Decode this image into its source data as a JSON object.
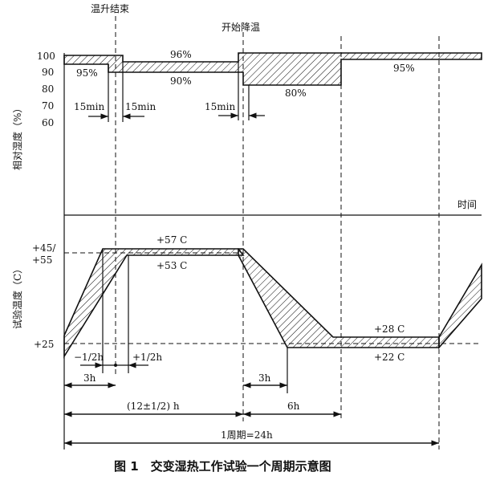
{
  "labels": {
    "heat_end": "温升结束",
    "cool_start": "开始降温",
    "humidity_axis": "相对湿度（%）",
    "temp_axis": "试验温度（C）",
    "time": "时间",
    "caption": "图 1　交变湿热工作试验一个周期示意图"
  },
  "humidity_ticks": [
    "100",
    "90",
    "80",
    "70",
    "60"
  ],
  "humidity_values": {
    "h95a": "95%",
    "h96": "96%",
    "h90": "90%",
    "h80": "80%",
    "h95b": "95%"
  },
  "durations": {
    "m1": "15min",
    "m2": "15min",
    "m3": "15min"
  },
  "temp_ticks": {
    "t45": "+45/",
    "t55": "+55",
    "t25": "+25"
  },
  "temp_values": {
    "t57": "+57 C",
    "t53": "+53 C",
    "t28": "+28 C",
    "t22": "+22 C"
  },
  "dims": {
    "a": "3h",
    "neg": "−1/2h",
    "pos": "+1/2h",
    "b": "(12±1/2) h",
    "c": "3h",
    "d": "6h",
    "e": "1周期=24h"
  }
}
